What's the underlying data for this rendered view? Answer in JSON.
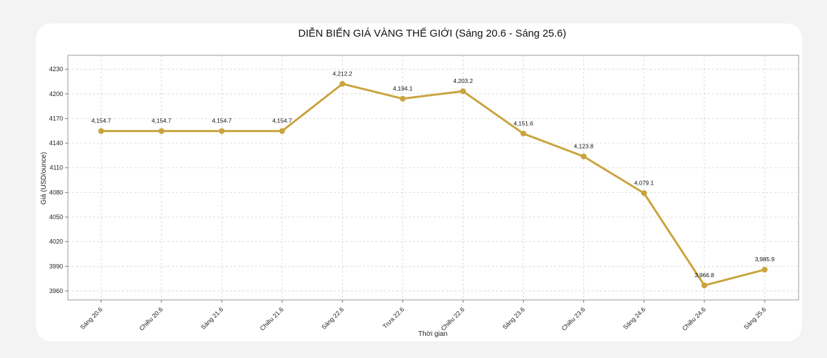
{
  "chart_data": {
    "type": "line",
    "title": "DIỄN BIẾN GIÁ VÀNG THẾ GIỚI (Sáng 20.6 - Sáng 25.6)",
    "xlabel": "Thời gian",
    "ylabel": "Giá (USD/ounce)",
    "categories": [
      "Sáng 20.6",
      "Chiều 20.6",
      "Sáng 21.6",
      "Chiều 21.6",
      "Sáng 22.6",
      "Trưa 22.6",
      "Chiều 22.6",
      "Sáng 23.6",
      "Chiều 23.6",
      "Sáng 24.6",
      "Chiều 24.6",
      "Sáng 25.6"
    ],
    "series": [
      {
        "values": [
          4154.7,
          4154.7,
          4154.7,
          4154.7,
          4212.2,
          4194.1,
          4203.2,
          4151.6,
          4123.8,
          4079.1,
          3966.8,
          3985.9
        ],
        "labels": [
          "4,154.7",
          "4,154.7",
          "4,154.7",
          "4,154.7",
          "4,212.2",
          "4,194.1",
          "4,203.2",
          "4,151.6",
          "4,123.8",
          "4,079.1",
          "3,966.8",
          "3,985.9"
        ],
        "color": "#c9a43e"
      }
    ],
    "yticks": [
      3960,
      3990,
      4020,
      4050,
      4080,
      4110,
      4140,
      4170,
      4200,
      4230
    ],
    "ylim": [
      3949,
      4247
    ],
    "grid": true
  }
}
